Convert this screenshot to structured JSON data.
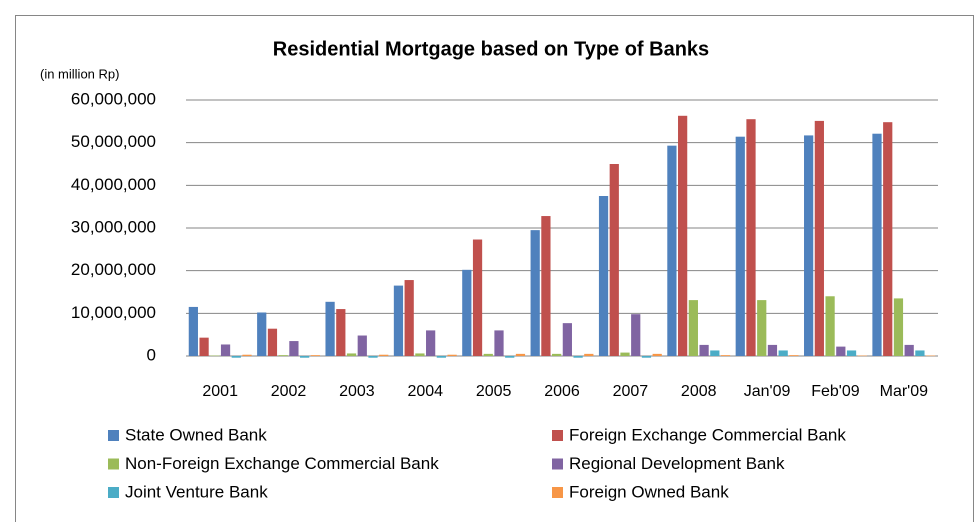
{
  "chart_data": {
    "type": "bar",
    "title": "Residential Mortgage based on Type of Banks",
    "y_label": "(in million Rp)",
    "categories": [
      "2001",
      "2002",
      "2003",
      "2004",
      "2005",
      "2006",
      "2007",
      "2008",
      "Jan'09",
      "Feb'09",
      "Mar'09"
    ],
    "series": [
      {
        "name": "State Owned Bank",
        "color": "#4f81bd",
        "values": [
          11500000,
          10200000,
          12700000,
          16500000,
          20200000,
          29500000,
          37500000,
          49300000,
          51400000,
          51700000,
          52100000
        ]
      },
      {
        "name": "Foreign Exchange Commercial Bank",
        "color": "#c0504d",
        "values": [
          4300000,
          6400000,
          11000000,
          17800000,
          27300000,
          32800000,
          45000000,
          56300000,
          55500000,
          55100000,
          54800000
        ]
      },
      {
        "name": "Non-Foreign Exchange Commercial Bank",
        "color": "#9bbb59",
        "values": [
          100000,
          200000,
          600000,
          600000,
          500000,
          500000,
          800000,
          13100000,
          13100000,
          14000000,
          13500000
        ]
      },
      {
        "name": "Regional Development Bank",
        "color": "#8064a2",
        "values": [
          2700000,
          3500000,
          4800000,
          6000000,
          6000000,
          7700000,
          9800000,
          2600000,
          2600000,
          2200000,
          2600000
        ]
      },
      {
        "name": "Joint Venture Bank",
        "color": "#4bacc6",
        "values": [
          -400000,
          -400000,
          -400000,
          -400000,
          -400000,
          -400000,
          -400000,
          1300000,
          1300000,
          1300000,
          1300000
        ]
      },
      {
        "name": "Foreign Owned Bank",
        "color": "#f79646",
        "values": [
          300000,
          200000,
          300000,
          300000,
          500000,
          500000,
          500000,
          200000,
          200000,
          100000,
          100000
        ]
      }
    ],
    "ylim": [
      0,
      60000000
    ],
    "yticks": [
      0,
      {
        "value": 10000000,
        "label": "10,000,000"
      },
      {
        "value": 20000000,
        "label": "20,000,000"
      },
      {
        "value": 30000000,
        "label": "30,000,000"
      },
      {
        "value": 40000000,
        "label": "40,000,000"
      },
      {
        "value": 50000000,
        "label": "50,000,000"
      },
      {
        "value": 60000000,
        "label": "60,000,000"
      }
    ],
    "grid": true
  }
}
